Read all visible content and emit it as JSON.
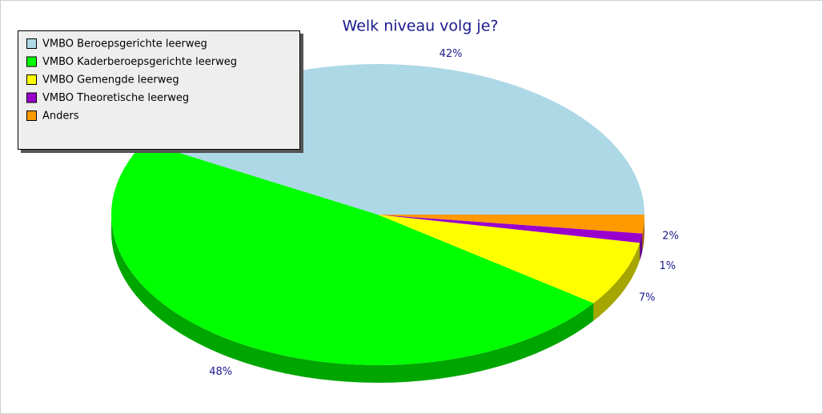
{
  "chart_data": {
    "type": "pie",
    "title": "Welk niveau volg je?",
    "categories": [
      "VMBO Beroepsgerichte leerweg",
      "VMBO Kaderberoepsgerichte leerweg",
      "VMBO Gemengde leerweg",
      "VMBO Theoretische leerweg",
      "Anders"
    ],
    "values": [
      42,
      48,
      7,
      1,
      2
    ],
    "value_labels": [
      "42%",
      "48%",
      "7%",
      "1%",
      "2%"
    ],
    "colors": [
      "#add8e6",
      "#00ff00",
      "#ffff00",
      "#9900cc",
      "#ff9900"
    ],
    "legend": "top-left"
  }
}
